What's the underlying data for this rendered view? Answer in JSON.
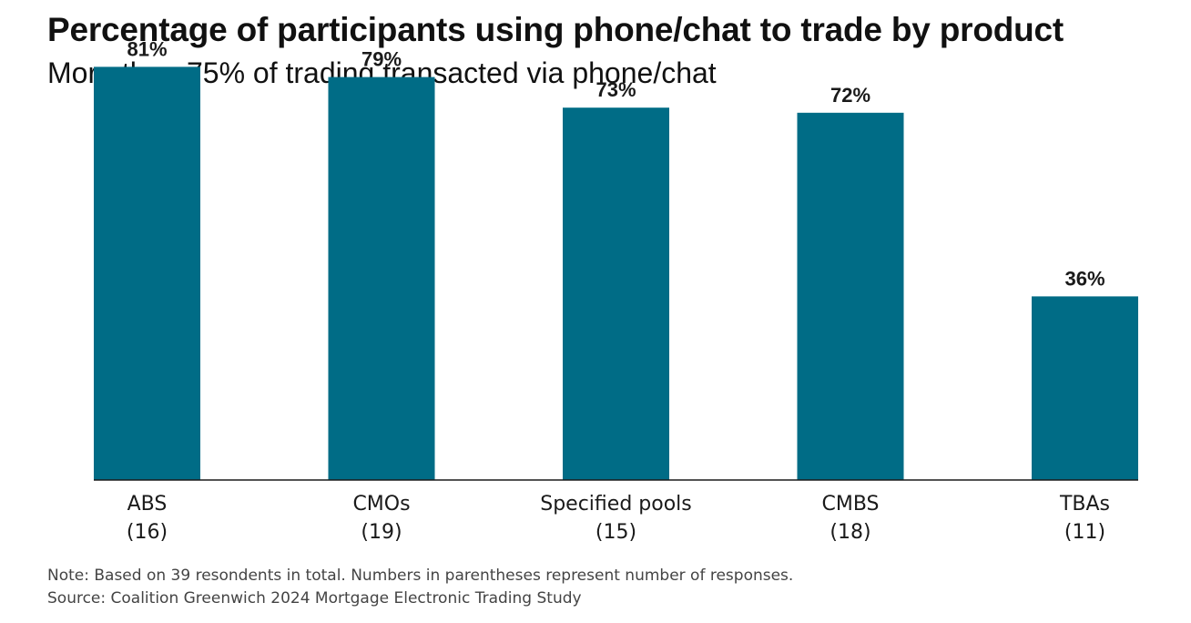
{
  "chart_data": {
    "type": "bar",
    "title": "Percentage of participants using phone/chat to trade by product",
    "subtitle": "More than 75% of trading transacted via phone/chat",
    "categories": [
      "ABS",
      "CMOs",
      "Specified pools",
      "CMBS",
      "TBAs"
    ],
    "responses": [
      "(16)",
      "(19)",
      "(15)",
      "(18)",
      "(11)"
    ],
    "values": [
      81,
      79,
      73,
      72,
      36
    ],
    "value_labels": [
      "81%",
      "79%",
      "73%",
      "72%",
      "36%"
    ],
    "unit": "%",
    "ylim": [
      0,
      100
    ],
    "grid": false,
    "bar_color": "#006c86",
    "note": "Note: Based on 39 resondents in total. Numbers in parentheses represent number of responses.",
    "source": "Source: Coalition Greenwich 2024 Mortgage Electronic Trading Study"
  }
}
